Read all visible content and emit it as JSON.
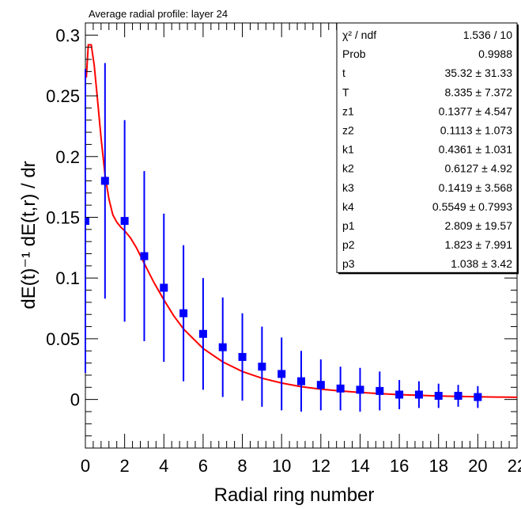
{
  "chart_data": {
    "type": "scatter",
    "title": "Average radial profile: layer 24",
    "xlabel": "Radial ring number",
    "ylabel": "dE(t)⁻¹ dE(t,r) / dr",
    "xlim": [
      0,
      22
    ],
    "ylim": [
      -0.04,
      0.31
    ],
    "x_ticks": [
      "0",
      "2",
      "4",
      "6",
      "8",
      "10",
      "12",
      "14",
      "16",
      "18",
      "20",
      "22"
    ],
    "y_ticks": [
      "0",
      "0.05",
      "0.1",
      "0.15",
      "0.2",
      "0.25",
      "0.3"
    ],
    "series": [
      {
        "kind": "points_with_errors",
        "color": "#0000ff",
        "points": [
          {
            "x": 0,
            "y": 0.147,
            "err": 0.125
          },
          {
            "x": 1,
            "y": 0.18,
            "err": 0.097
          },
          {
            "x": 2,
            "y": 0.147,
            "err": 0.083
          },
          {
            "x": 3,
            "y": 0.118,
            "err": 0.07
          },
          {
            "x": 4,
            "y": 0.092,
            "err": 0.061
          },
          {
            "x": 5,
            "y": 0.071,
            "err": 0.056
          },
          {
            "x": 6,
            "y": 0.054,
            "err": 0.046
          },
          {
            "x": 7,
            "y": 0.043,
            "err": 0.041
          },
          {
            "x": 8,
            "y": 0.035,
            "err": 0.036
          },
          {
            "x": 9,
            "y": 0.027,
            "err": 0.033
          },
          {
            "x": 10,
            "y": 0.021,
            "err": 0.03
          },
          {
            "x": 11,
            "y": 0.015,
            "err": 0.025
          },
          {
            "x": 12,
            "y": 0.012,
            "err": 0.021
          },
          {
            "x": 13,
            "y": 0.009,
            "err": 0.018
          },
          {
            "x": 14,
            "y": 0.008,
            "err": 0.018
          },
          {
            "x": 15,
            "y": 0.007,
            "err": 0.016
          },
          {
            "x": 16,
            "y": 0.004,
            "err": 0.012
          },
          {
            "x": 17,
            "y": 0.004,
            "err": 0.011
          },
          {
            "x": 18,
            "y": 0.003,
            "err": 0.01
          },
          {
            "x": 19,
            "y": 0.003,
            "err": 0.009
          },
          {
            "x": 20,
            "y": 0.002,
            "err": 0.009
          }
        ]
      },
      {
        "kind": "fit_curve",
        "color": "#ff0000",
        "x": [
          0.05,
          0.15,
          0.3,
          0.45,
          0.6,
          0.8,
          1.0,
          1.2,
          1.4,
          1.6,
          1.8,
          2.0,
          2.3,
          2.6,
          3.0,
          3.5,
          4.0,
          4.5,
          5.0,
          6.0,
          7.0,
          8.0,
          9.0,
          10.0,
          11.0,
          12.0,
          13.0,
          14.0,
          15.0,
          16.0,
          17.0,
          18.0,
          19.0,
          20.0,
          21.0,
          22.0
        ],
        "y": [
          0.265,
          0.292,
          0.292,
          0.275,
          0.25,
          0.215,
          0.185,
          0.165,
          0.152,
          0.146,
          0.142,
          0.139,
          0.133,
          0.125,
          0.112,
          0.096,
          0.082,
          0.069,
          0.058,
          0.042,
          0.031,
          0.023,
          0.0175,
          0.0135,
          0.0105,
          0.0085,
          0.007,
          0.0058,
          0.0048,
          0.004,
          0.0034,
          0.0029,
          0.0025,
          0.0022,
          0.002,
          0.0018
        ]
      }
    ],
    "stats_box": [
      {
        "name": "χ² / ndf",
        "value": "1.536 / 10"
      },
      {
        "name": "Prob",
        "value": "0.9988"
      },
      {
        "name": "t",
        "value": "35.32 ± 31.33"
      },
      {
        "name": "T",
        "value": "8.335 ± 7.372"
      },
      {
        "name": "z1",
        "value": "0.1377 ± 4.547"
      },
      {
        "name": "z2",
        "value": "0.1113 ± 1.073"
      },
      {
        "name": "k1",
        "value": "0.4361 ± 1.031"
      },
      {
        "name": "k2",
        "value": "0.6127 ±  4.92"
      },
      {
        "name": "k3",
        "value": "0.1419 ± 3.568"
      },
      {
        "name": "k4",
        "value": "0.5549 ± 0.7993"
      },
      {
        "name": "p1",
        "value": "2.809 ± 19.57"
      },
      {
        "name": "p2",
        "value": "1.823 ± 7.991"
      },
      {
        "name": "p3",
        "value": "1.038 ±  3.42"
      }
    ],
    "grid": false,
    "legend_placement": "top-right"
  }
}
